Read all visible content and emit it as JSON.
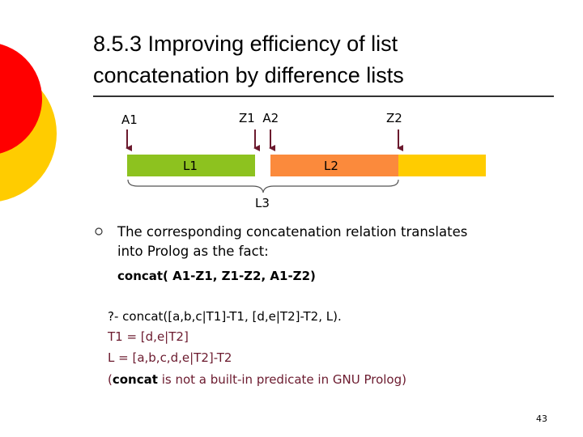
{
  "title": [
    "8.5.3 Improving efficiency of list",
    "concatenation by difference lists"
  ],
  "diagram": {
    "pointers": [
      "A1",
      "Z1  A2",
      "Z2"
    ],
    "segments": [
      "L1",
      "L2"
    ],
    "brace": "L3"
  },
  "bullet": [
    "The corresponding concatenation relation translates",
    "into Prolog as the fact:"
  ],
  "fact": "concat( A1-Z1, Z1-Z2, A1-Z2)",
  "query": [
    "?- concat([a,b,c|T1]-T1, [d,e|T2]-T2, L).",
    "T1 = [d,e|T2]",
    "L = [a,b,c,d,e|T2]-T2"
  ],
  "note": [
    "(",
    "concat",
    " is not a built-in predicate in GNU Prolog)"
  ],
  "page_number": "43"
}
